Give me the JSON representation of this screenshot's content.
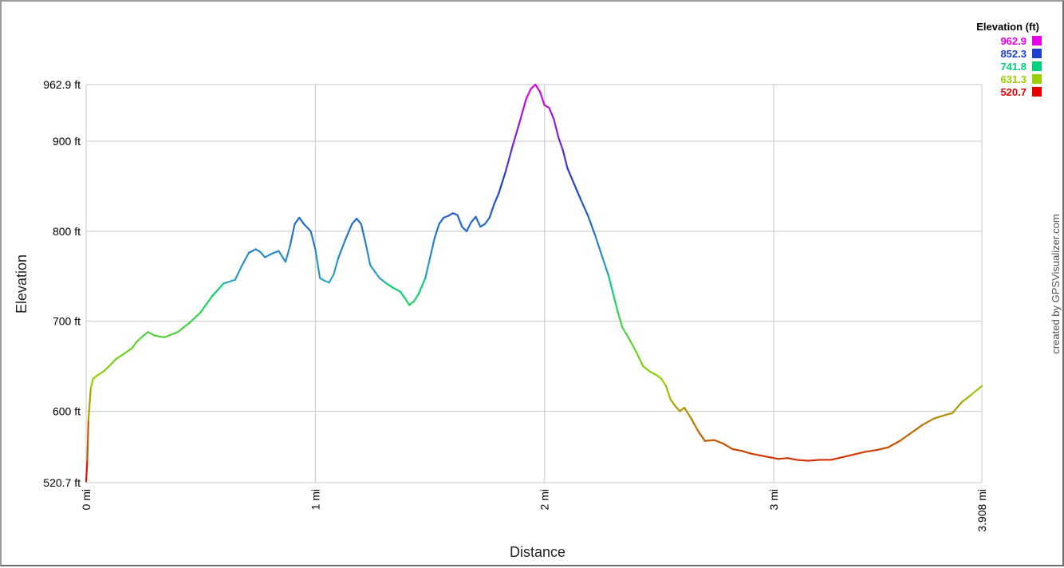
{
  "chart_data": {
    "type": "line",
    "xlabel": "Distance",
    "ylabel": "Elevation",
    "xlim": [
      0,
      3.908
    ],
    "ylim": [
      520.7,
      962.9
    ],
    "grid": true,
    "x_ticks": [
      {
        "value": 0,
        "label": "0 mi"
      },
      {
        "value": 1,
        "label": "1 mi"
      },
      {
        "value": 2,
        "label": "2 mi"
      },
      {
        "value": 3,
        "label": "3 mi"
      },
      {
        "value": 3.908,
        "label": "3.908 mi"
      }
    ],
    "y_ticks": [
      {
        "value": 520.7,
        "label": "520.7 ft"
      },
      {
        "value": 600,
        "label": "600 ft"
      },
      {
        "value": 700,
        "label": "700 ft"
      },
      {
        "value": 800,
        "label": "800 ft"
      },
      {
        "value": 900,
        "label": "900 ft"
      },
      {
        "value": 962.9,
        "label": "962.9 ft"
      }
    ],
    "legend": {
      "title": "Elevation (ft)",
      "placement": "top-right",
      "entries": [
        {
          "label": "962.9",
          "value": 962.9,
          "color": "#e600e6"
        },
        {
          "label": "852.3",
          "value": 852.3,
          "color": "#1f3fd1"
        },
        {
          "label": "741.8",
          "value": 741.8,
          "color": "#00d27a"
        },
        {
          "label": "631.3",
          "value": 631.3,
          "color": "#9ad000"
        },
        {
          "label": "520.7",
          "value": 520.7,
          "color": "#e60000"
        }
      ]
    },
    "credit": "created by GPSVisualizer.com",
    "points": [
      [
        0.0,
        522
      ],
      [
        0.005,
        545
      ],
      [
        0.01,
        590
      ],
      [
        0.02,
        625
      ],
      [
        0.03,
        636
      ],
      [
        0.05,
        640
      ],
      [
        0.08,
        645
      ],
      [
        0.1,
        650
      ],
      [
        0.13,
        658
      ],
      [
        0.16,
        663
      ],
      [
        0.2,
        670
      ],
      [
        0.22,
        677
      ],
      [
        0.25,
        684
      ],
      [
        0.27,
        688
      ],
      [
        0.3,
        684
      ],
      [
        0.34,
        682
      ],
      [
        0.37,
        685
      ],
      [
        0.4,
        688
      ],
      [
        0.45,
        698
      ],
      [
        0.5,
        710
      ],
      [
        0.55,
        728
      ],
      [
        0.6,
        742
      ],
      [
        0.65,
        746
      ],
      [
        0.68,
        762
      ],
      [
        0.71,
        776
      ],
      [
        0.74,
        780
      ],
      [
        0.76,
        777
      ],
      [
        0.78,
        771
      ],
      [
        0.81,
        775
      ],
      [
        0.84,
        778
      ],
      [
        0.87,
        766
      ],
      [
        0.89,
        784
      ],
      [
        0.91,
        808
      ],
      [
        0.93,
        815
      ],
      [
        0.95,
        808
      ],
      [
        0.98,
        800
      ],
      [
        1.0,
        780
      ],
      [
        1.02,
        748
      ],
      [
        1.04,
        745
      ],
      [
        1.06,
        743
      ],
      [
        1.08,
        752
      ],
      [
        1.1,
        770
      ],
      [
        1.13,
        790
      ],
      [
        1.16,
        808
      ],
      [
        1.18,
        814
      ],
      [
        1.2,
        808
      ],
      [
        1.22,
        786
      ],
      [
        1.24,
        762
      ],
      [
        1.26,
        755
      ],
      [
        1.28,
        748
      ],
      [
        1.31,
        742
      ],
      [
        1.34,
        737
      ],
      [
        1.37,
        733
      ],
      [
        1.39,
        726
      ],
      [
        1.41,
        718
      ],
      [
        1.43,
        722
      ],
      [
        1.45,
        730
      ],
      [
        1.48,
        748
      ],
      [
        1.5,
        770
      ],
      [
        1.52,
        792
      ],
      [
        1.54,
        808
      ],
      [
        1.56,
        815
      ],
      [
        1.58,
        817
      ],
      [
        1.6,
        820
      ],
      [
        1.62,
        818
      ],
      [
        1.64,
        805
      ],
      [
        1.66,
        800
      ],
      [
        1.68,
        810
      ],
      [
        1.7,
        816
      ],
      [
        1.72,
        805
      ],
      [
        1.74,
        808
      ],
      [
        1.76,
        815
      ],
      [
        1.78,
        830
      ],
      [
        1.8,
        842
      ],
      [
        1.83,
        866
      ],
      [
        1.86,
        894
      ],
      [
        1.89,
        920
      ],
      [
        1.92,
        947
      ],
      [
        1.94,
        958
      ],
      [
        1.96,
        962.9
      ],
      [
        1.98,
        955
      ],
      [
        2.0,
        940
      ],
      [
        2.02,
        937
      ],
      [
        2.04,
        925
      ],
      [
        2.06,
        905
      ],
      [
        2.08,
        890
      ],
      [
        2.1,
        870
      ],
      [
        2.13,
        852
      ],
      [
        2.16,
        834
      ],
      [
        2.19,
        817
      ],
      [
        2.22,
        796
      ],
      [
        2.25,
        773
      ],
      [
        2.28,
        750
      ],
      [
        2.3,
        730
      ],
      [
        2.32,
        710
      ],
      [
        2.34,
        693
      ],
      [
        2.37,
        680
      ],
      [
        2.4,
        666
      ],
      [
        2.43,
        650
      ],
      [
        2.46,
        644
      ],
      [
        2.49,
        640
      ],
      [
        2.51,
        636
      ],
      [
        2.53,
        628
      ],
      [
        2.55,
        613
      ],
      [
        2.57,
        606
      ],
      [
        2.59,
        600
      ],
      [
        2.61,
        604
      ],
      [
        2.64,
        592
      ],
      [
        2.67,
        578
      ],
      [
        2.7,
        567
      ],
      [
        2.74,
        568
      ],
      [
        2.78,
        564
      ],
      [
        2.82,
        558
      ],
      [
        2.86,
        556
      ],
      [
        2.9,
        553
      ],
      [
        2.94,
        551
      ],
      [
        2.98,
        549
      ],
      [
        3.02,
        547
      ],
      [
        3.06,
        548
      ],
      [
        3.1,
        546
      ],
      [
        3.15,
        545
      ],
      [
        3.2,
        546
      ],
      [
        3.25,
        546
      ],
      [
        3.3,
        549
      ],
      [
        3.35,
        552
      ],
      [
        3.4,
        555
      ],
      [
        3.45,
        557
      ],
      [
        3.5,
        560
      ],
      [
        3.55,
        567
      ],
      [
        3.6,
        576
      ],
      [
        3.65,
        585
      ],
      [
        3.7,
        592
      ],
      [
        3.75,
        596
      ],
      [
        3.78,
        598
      ],
      [
        3.82,
        610
      ],
      [
        3.86,
        618
      ],
      [
        3.908,
        628
      ]
    ]
  }
}
